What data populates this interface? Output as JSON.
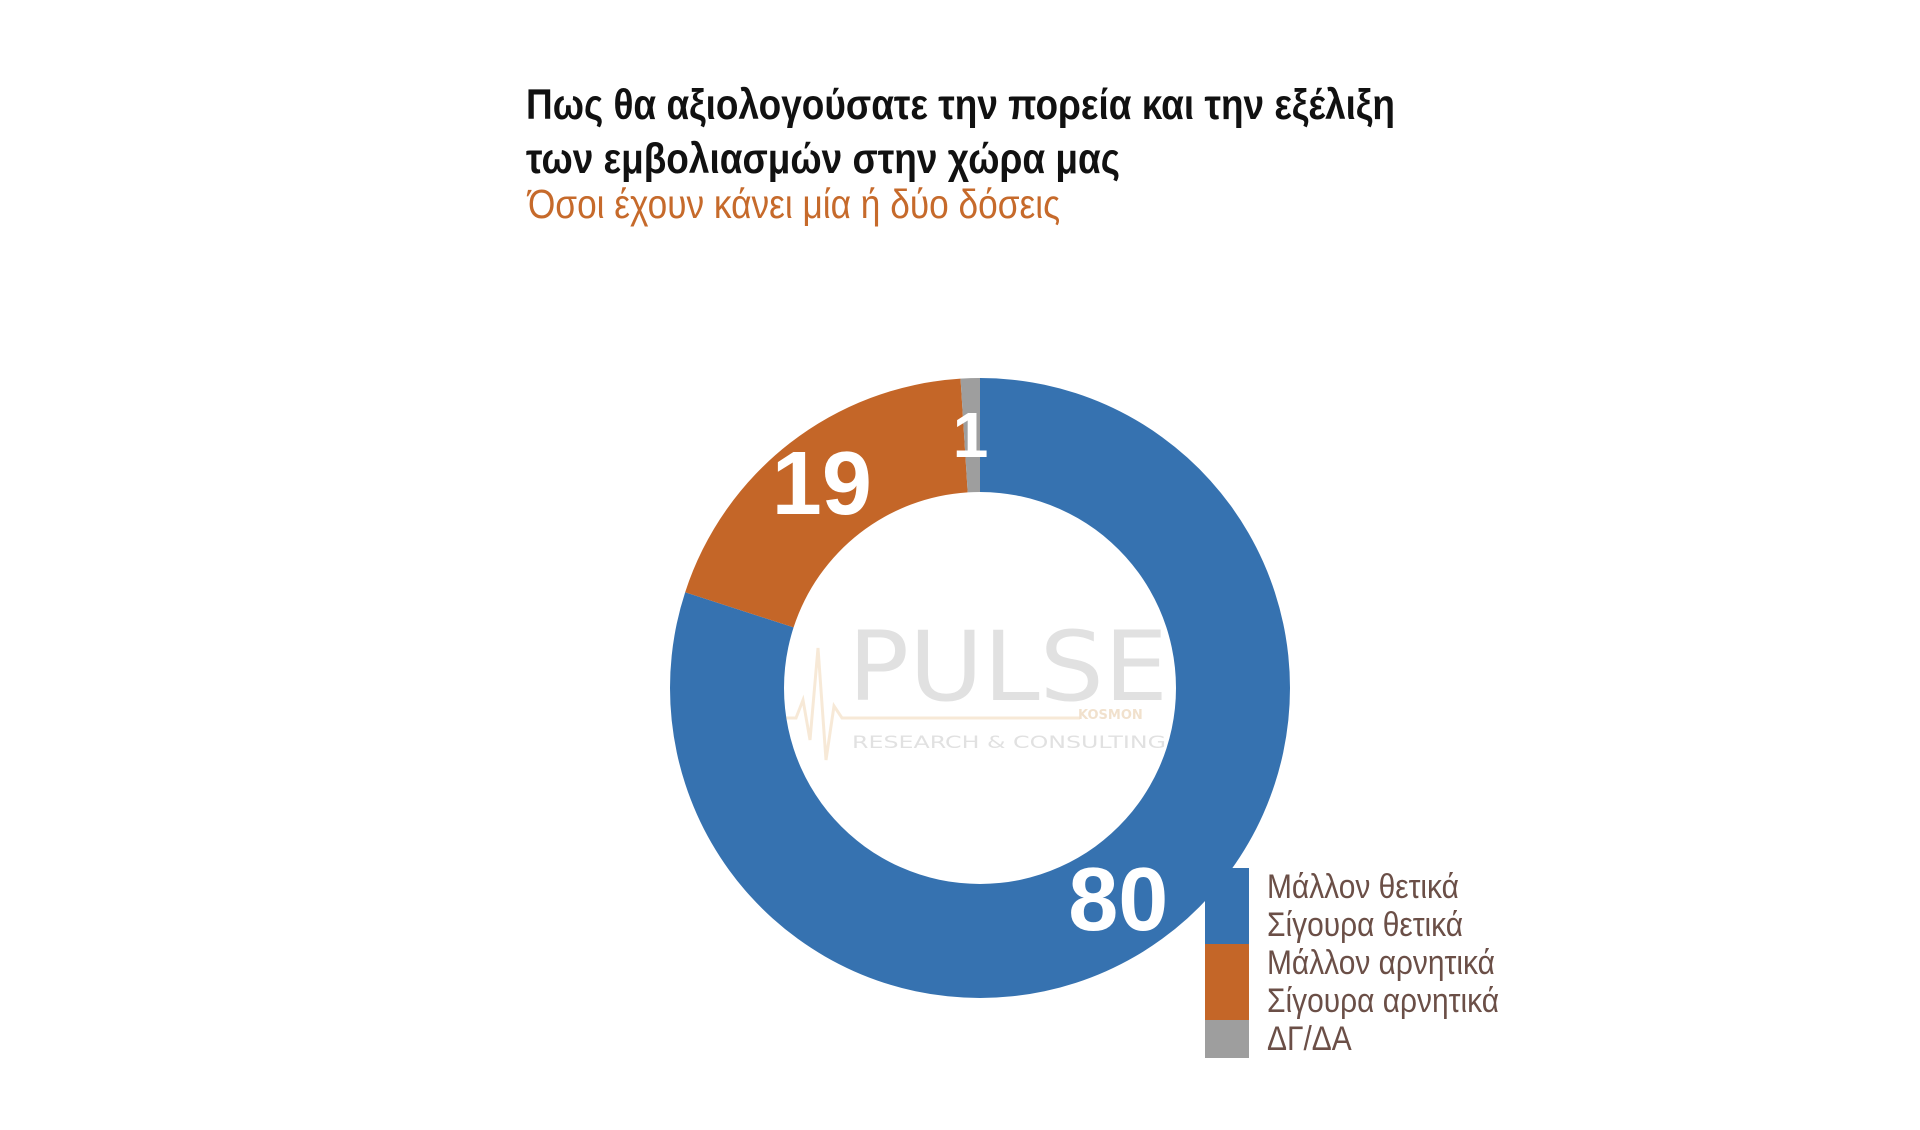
{
  "chart_data": {
    "type": "pie",
    "donut": true,
    "title_lines": [
      "Πως θα αξιολογούσατε την πορεία και την εξέλιξη",
      "των εμβολιασμών στην χώρα μας"
    ],
    "subtitle": "Όσοι έχουν κάνει μία ή δύο δόσεις",
    "slices": [
      {
        "value": 80,
        "label": "80",
        "color": "#3672b0",
        "legend": [
          "Μάλλον θετικά",
          "Σίγουρα θετικά"
        ]
      },
      {
        "value": 19,
        "label": "19",
        "color": "#c46628",
        "legend": [
          "Μάλλον αρνητικά",
          "Σίγουρα αρνητικά"
        ]
      },
      {
        "value": 1,
        "label": "1",
        "color": "#9e9e9e",
        "legend": [
          "ΔΓ/ΔΑ"
        ]
      }
    ],
    "legend_position": "bottom-right"
  },
  "watermark": {
    "brand": "PULSE",
    "tagline": "RESEARCH & CONSULTING",
    "small": "KOSMON"
  }
}
